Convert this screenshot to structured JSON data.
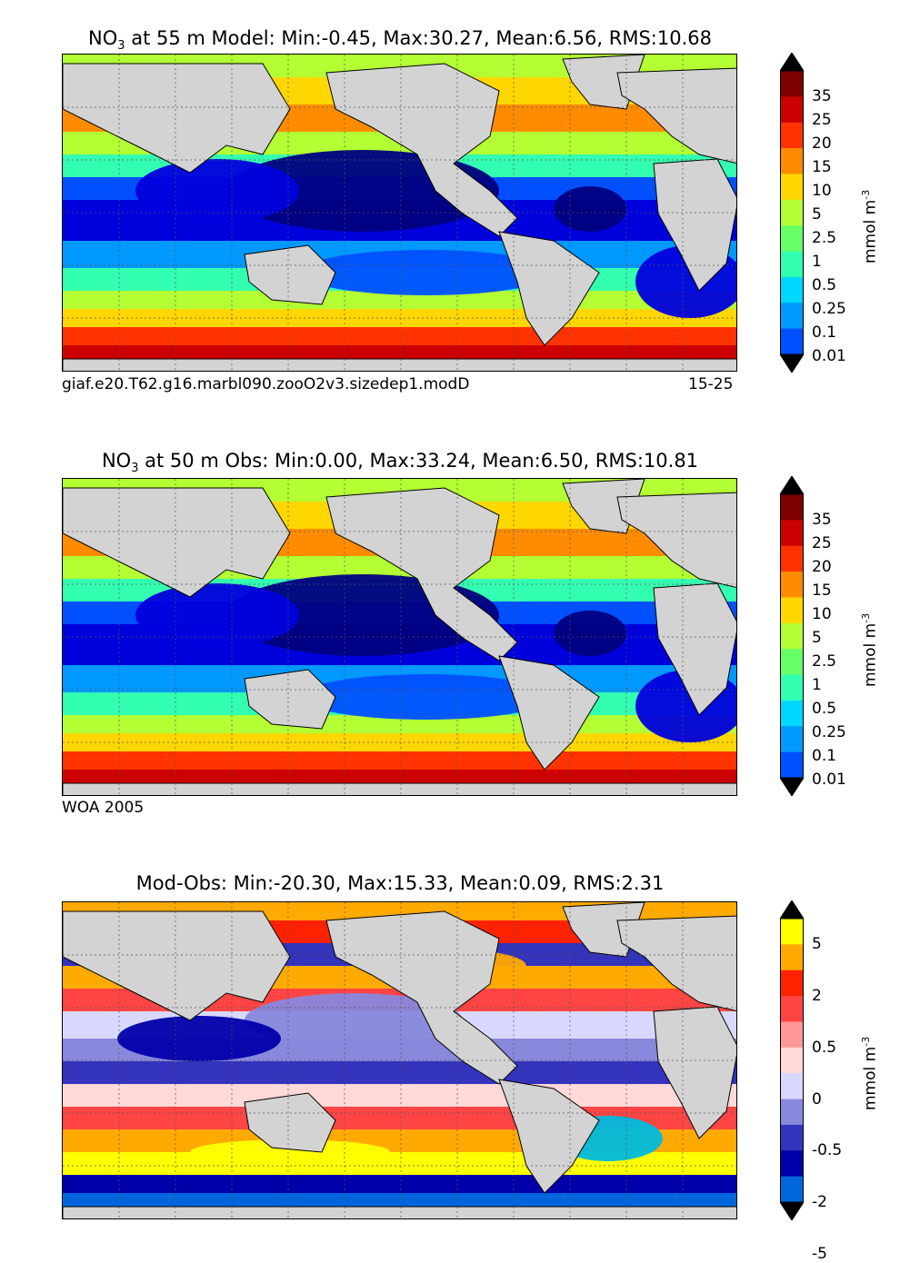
{
  "panels": [
    {
      "title_prefix": "NO",
      "title_sub": "3",
      "title_suffix": " at 55 m Model: Min:-0.45, Max:30.27, Mean:6.56, RMS:10.68",
      "foot_left": "giaf.e20.T62.g16.marbl090.zooO2v3.sizedep1.modD",
      "foot_right": "15-25",
      "colorbar_labels": [
        "35",
        "25",
        "20",
        "15",
        "10",
        "5",
        "2.5",
        "1",
        "0.5",
        "0.25",
        "0.1",
        "0.01"
      ],
      "colorbar_colors": [
        "#7f0000",
        "#cc0000",
        "#ff3300",
        "#ff8c00",
        "#ffd700",
        "#b3ff33",
        "#66ff66",
        "#33ffb0",
        "#00d8ff",
        "#0099ff",
        "#0050ff",
        "#0000dd",
        "#00007f"
      ],
      "unit_text": "mmol m",
      "unit_sup": "-3"
    },
    {
      "title_prefix": "NO",
      "title_sub": "3",
      "title_suffix": " at 50 m Obs: Min:0.00, Max:33.24, Mean:6.50, RMS:10.81",
      "foot_left": "WOA 2005",
      "foot_right": "",
      "colorbar_labels": [
        "35",
        "25",
        "20",
        "15",
        "10",
        "5",
        "2.5",
        "1",
        "0.5",
        "0.25",
        "0.1",
        "0.01"
      ],
      "colorbar_colors": [
        "#7f0000",
        "#cc0000",
        "#ff3300",
        "#ff8c00",
        "#ffd700",
        "#b3ff33",
        "#66ff66",
        "#33ffb0",
        "#00d8ff",
        "#0099ff",
        "#0050ff",
        "#0000dd",
        "#00007f"
      ],
      "unit_text": "mmol m",
      "unit_sup": "-3"
    },
    {
      "title_prefix": "",
      "title_sub": "",
      "title_suffix": "Mod-Obs: Min:-20.30, Max:15.33, Mean:0.09, RMS:2.31",
      "foot_left": "",
      "foot_right": "",
      "colorbar_labels": [
        "5",
        "2",
        "0.5",
        "0",
        "-0.5",
        "-2",
        "-5"
      ],
      "colorbar_colors": [
        "#ffff00",
        "#ffaa00",
        "#ff2200",
        "#ff4444",
        "#ff9999",
        "#ffd8d8",
        "#d8d8ff",
        "#8888dd",
        "#3333bb",
        "#0000aa",
        "#0066dd",
        "#00bbdd",
        "#00ffff"
      ],
      "unit_text": "mmol m",
      "unit_sup": "-3"
    }
  ],
  "colors": {
    "land": "#d3d3d3",
    "gridline": "#555555"
  }
}
